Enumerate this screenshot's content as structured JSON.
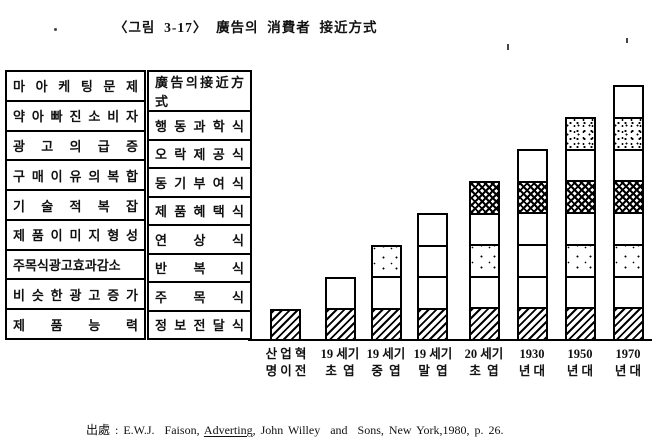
{
  "title": "〈그림  3-17〉  廣告의  消費者  接近方式",
  "table": {
    "rows": [
      {
        "problem": "마 아 케 팅 문 제",
        "approach": "廣告의接近方式"
      },
      {
        "problem": "약 아 빠 진 소 비 자",
        "approach": "행 동 과 학 식"
      },
      {
        "problem": "광 고 의 급 증",
        "approach": "오 락 제 공 식"
      },
      {
        "problem": "구 매 이 유 의 복 합",
        "approach": "동 기 부 여 식"
      },
      {
        "problem": "기 술 적 복 잡",
        "approach": "제 품 혜 택 식"
      },
      {
        "problem": "제 품 이 미 지 형 성",
        "approach": "연 상 식"
      },
      {
        "problem": "주목식광고효과감소",
        "approach": "반 복 식"
      },
      {
        "problem": "비 슷 한 광 고 증 가",
        "approach": "주 목 식"
      },
      {
        "problem": "제 품 능 력",
        "approach": "정 보 전 달 식"
      }
    ]
  },
  "chart_data": {
    "type": "bar",
    "subtype": "stacked",
    "title": "廣告의 消費者 接近方式 (누적 막대: 시대별 접근방식 수)",
    "categories": [
      {
        "line1": "산 업 혁",
        "line2": "명 이 전"
      },
      {
        "line1": "19 세기",
        "line2": "초  엽"
      },
      {
        "line1": "19 세기",
        "line2": "중  엽"
      },
      {
        "line1": "19 세기",
        "line2": "말  엽"
      },
      {
        "line1": "20 세기",
        "line2": "초  엽"
      },
      {
        "line1": "1930",
        "line2": "년 대"
      },
      {
        "line1": "1950",
        "line2": "년 대"
      },
      {
        "line1": "1970",
        "line2": "년 대"
      }
    ],
    "values": [
      1,
      2,
      3,
      4,
      5,
      6,
      7,
      8
    ],
    "approaches_bottom_to_top": [
      "정보전달식",
      "주목식",
      "반복식",
      "연상식",
      "제품혜택식",
      "동기부여식",
      "오락제공식",
      "행동과학식"
    ],
    "bars_segments_bottom_to_top": [
      [
        "hatch"
      ],
      [
        "hatch",
        "plain"
      ],
      [
        "hatch",
        "plain",
        "dots"
      ],
      [
        "hatch",
        "plain",
        "plain",
        "plain"
      ],
      [
        "hatch",
        "plain",
        "dots",
        "plain",
        "cross"
      ],
      [
        "hatch",
        "plain",
        "plain",
        "plain",
        "cross",
        "plain"
      ],
      [
        "hatch",
        "plain",
        "dots",
        "plain",
        "cross",
        "plain",
        "speckle"
      ],
      [
        "hatch",
        "plain",
        "dots",
        "plain",
        "cross",
        "plain",
        "speckle",
        "plain"
      ]
    ],
    "pattern_names": {
      "hatch": "diagonal-hatch",
      "plain": "white",
      "dots": "sparse-dots",
      "cross": "dark-crosshatch",
      "speckle": "stipple"
    },
    "grid": false,
    "y_axis_shown": false,
    "legend_shown": false
  },
  "footer": {
    "prefix": "出處 : E.W.J.  Faison, ",
    "source_underlined": "Adverting",
    "suffix": ", John Willey  and  Sons, New York,1980, p. 26."
  },
  "colors": {
    "ink": "#111111",
    "paper": "#ffffff"
  }
}
